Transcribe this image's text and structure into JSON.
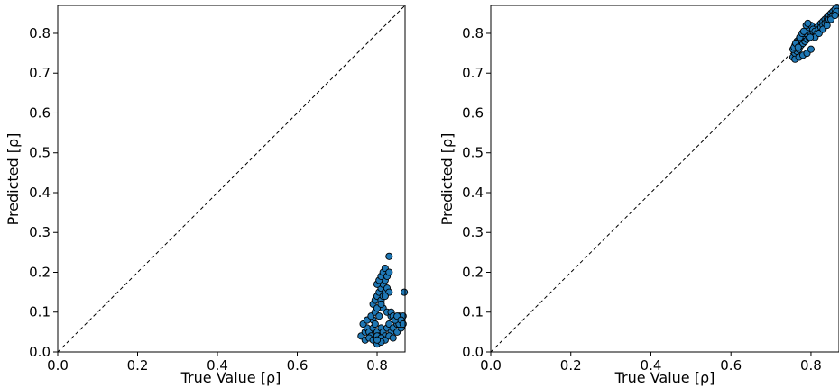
{
  "chart_data": [
    {
      "type": "scatter",
      "xlabel": "True Value [ρ]",
      "ylabel": "Predicted [ρ]",
      "xlim": [
        0,
        0.87
      ],
      "ylim": [
        0,
        0.87
      ],
      "xticks": [
        "0.0",
        "0.2",
        "0.4",
        "0.6",
        "0.8"
      ],
      "yticks": [
        "0.0",
        "0.1",
        "0.2",
        "0.3",
        "0.4",
        "0.5",
        "0.6",
        "0.7",
        "0.8"
      ],
      "identity_line": true,
      "marker_color": "#1f77b4",
      "marker_edge": "#000000",
      "x": [
        0.76,
        0.77,
        0.775,
        0.78,
        0.785,
        0.79,
        0.79,
        0.795,
        0.8,
        0.805,
        0.81,
        0.815,
        0.82,
        0.825,
        0.83,
        0.835,
        0.84,
        0.845,
        0.85,
        0.855,
        0.86,
        0.865,
        0.77,
        0.78,
        0.79,
        0.8,
        0.81,
        0.82,
        0.83,
        0.84,
        0.85,
        0.86,
        0.765,
        0.775,
        0.785,
        0.795,
        0.805,
        0.815,
        0.825,
        0.835,
        0.845,
        0.855,
        0.79,
        0.795,
        0.8,
        0.805,
        0.81,
        0.815,
        0.82,
        0.8,
        0.805,
        0.81,
        0.815,
        0.82,
        0.825,
        0.83,
        0.81,
        0.815,
        0.82,
        0.825,
        0.83,
        0.8,
        0.81,
        0.82,
        0.835,
        0.84,
        0.845,
        0.85,
        0.86,
        0.865,
        0.83,
        0.868,
        0.8,
        0.81,
        0.8
      ],
      "y": [
        0.04,
        0.05,
        0.06,
        0.05,
        0.04,
        0.06,
        0.08,
        0.07,
        0.05,
        0.04,
        0.06,
        0.05,
        0.04,
        0.06,
        0.07,
        0.05,
        0.06,
        0.08,
        0.07,
        0.09,
        0.08,
        0.09,
        0.03,
        0.035,
        0.03,
        0.04,
        0.035,
        0.03,
        0.04,
        0.035,
        0.05,
        0.06,
        0.07,
        0.08,
        0.09,
        0.1,
        0.09,
        0.11,
        0.1,
        0.09,
        0.08,
        0.07,
        0.12,
        0.13,
        0.14,
        0.15,
        0.16,
        0.17,
        0.18,
        0.17,
        0.18,
        0.19,
        0.2,
        0.21,
        0.19,
        0.2,
        0.13,
        0.14,
        0.15,
        0.16,
        0.15,
        0.11,
        0.12,
        0.14,
        0.1,
        0.09,
        0.08,
        0.09,
        0.08,
        0.07,
        0.24,
        0.15,
        0.02,
        0.025,
        0.03
      ]
    },
    {
      "type": "scatter",
      "xlabel": "True Value [ρ]",
      "ylabel": "Predicted [ρ]",
      "xlim": [
        0,
        0.87
      ],
      "ylim": [
        0,
        0.87
      ],
      "xticks": [
        "0.0",
        "0.2",
        "0.4",
        "0.6",
        "0.8"
      ],
      "yticks": [
        "0.0",
        "0.1",
        "0.2",
        "0.3",
        "0.4",
        "0.5",
        "0.6",
        "0.7",
        "0.8"
      ],
      "identity_line": true,
      "marker_color": "#1f77b4",
      "marker_edge": "#000000",
      "x": [
        0.755,
        0.76,
        0.765,
        0.77,
        0.775,
        0.78,
        0.785,
        0.79,
        0.795,
        0.8,
        0.805,
        0.81,
        0.815,
        0.82,
        0.825,
        0.83,
        0.835,
        0.84,
        0.845,
        0.85,
        0.855,
        0.86,
        0.865,
        0.755,
        0.76,
        0.765,
        0.77,
        0.775,
        0.78,
        0.785,
        0.79,
        0.795,
        0.8,
        0.805,
        0.81,
        0.815,
        0.82,
        0.825,
        0.83,
        0.835,
        0.84,
        0.845,
        0.85,
        0.855,
        0.86,
        0.865,
        0.76,
        0.77,
        0.78,
        0.79,
        0.8,
        0.81,
        0.82,
        0.83,
        0.84,
        0.85,
        0.86,
        0.758,
        0.762,
        0.768,
        0.772,
        0.778,
        0.782,
        0.788,
        0.792,
        0.798
      ],
      "y": [
        0.74,
        0.75,
        0.755,
        0.76,
        0.77,
        0.775,
        0.78,
        0.785,
        0.79,
        0.8,
        0.805,
        0.81,
        0.815,
        0.82,
        0.825,
        0.83,
        0.835,
        0.84,
        0.845,
        0.85,
        0.855,
        0.86,
        0.865,
        0.76,
        0.77,
        0.78,
        0.785,
        0.79,
        0.795,
        0.8,
        0.81,
        0.815,
        0.82,
        0.81,
        0.805,
        0.8,
        0.81,
        0.815,
        0.82,
        0.825,
        0.83,
        0.835,
        0.84,
        0.845,
        0.85,
        0.855,
        0.735,
        0.74,
        0.745,
        0.75,
        0.76,
        0.79,
        0.8,
        0.81,
        0.82,
        0.835,
        0.845,
        0.765,
        0.775,
        0.765,
        0.79,
        0.8,
        0.805,
        0.82,
        0.825,
        0.79
      ]
    }
  ]
}
